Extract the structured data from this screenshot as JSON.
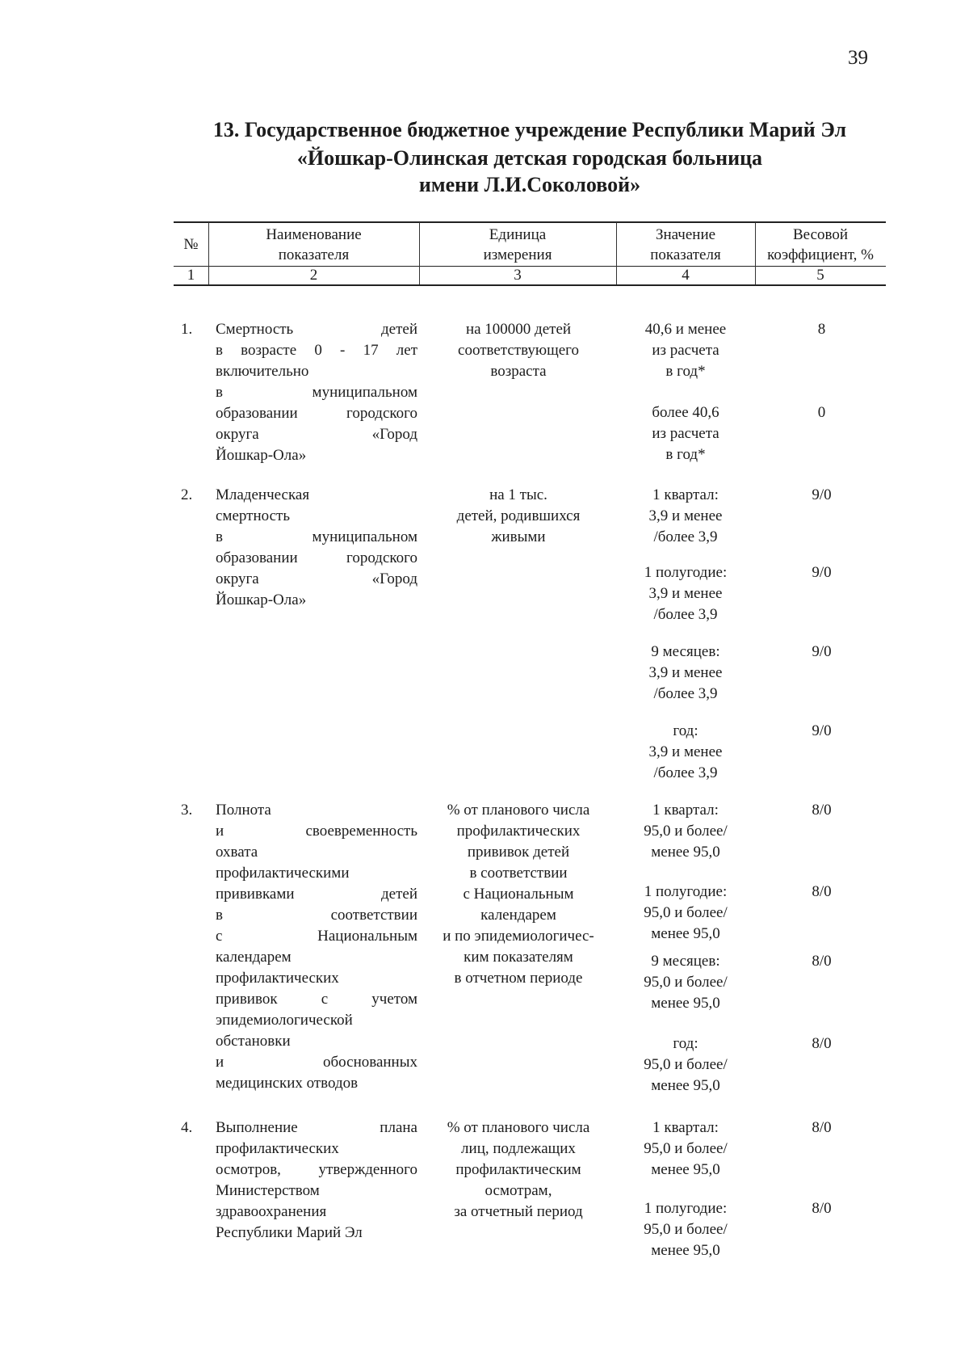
{
  "page_number": "39",
  "title": [
    "13. Государственное бюджетное учреждение Республики Марий Эл",
    "«Йошкар-Олинская детская городская больница",
    "имени Л.И.Соколовой»"
  ],
  "table": {
    "headers": [
      [
        "№"
      ],
      [
        "Наименование",
        "показателя"
      ],
      [
        "Единица",
        "измерения"
      ],
      [
        "Значение",
        "показателя"
      ],
      [
        "Весовой",
        "коэффициент, %"
      ]
    ],
    "column_numbers": [
      "1",
      "2",
      "3",
      "4",
      "5"
    ],
    "rows": [
      {
        "number": "1.",
        "name": [
          "Смертность детей",
          "в возрасте 0 - 17 лет",
          "включительно",
          "в муниципальном",
          "образовании городского",
          "округа «Город",
          "Йошкар-Ола»"
        ],
        "unit": [
          "на 100000 детей",
          "соответствующего",
          "возраста"
        ],
        "values": [
          {
            "lines": [
              "40,6 и менее",
              "из расчета",
              "в год*"
            ],
            "weight": "8"
          },
          {
            "lines": [
              "более 40,6",
              "из расчета",
              "в год*"
            ],
            "weight": "0"
          }
        ]
      },
      {
        "number": "2.",
        "name": [
          "Младенческая",
          "смертность",
          "в муниципальном",
          "образовании городского",
          "округа «Город",
          "Йошкар-Ола»"
        ],
        "unit": [
          "на 1 тыс.",
          "детей, родившихся",
          "живыми"
        ],
        "values": [
          {
            "lines": [
              "1 квартал:",
              "3,9 и менее",
              "/более 3,9"
            ],
            "weight": "9/0"
          },
          {
            "lines": [
              "1 полугодие:",
              "3,9 и менее",
              "/более 3,9"
            ],
            "weight": "9/0"
          },
          {
            "lines": [
              "9 месяцев:",
              "3,9 и менее",
              "/более 3,9"
            ],
            "weight": "9/0"
          },
          {
            "lines": [
              "год:",
              "3,9 и менее",
              "/более 3,9"
            ],
            "weight": "9/0"
          }
        ]
      },
      {
        "number": "3.",
        "name": [
          "Полнота",
          "и своевременность",
          "охвата",
          "профилактическими",
          "прививками детей",
          "в соответствии",
          "с Национальным",
          "календарем",
          "профилактических",
          "прививок с учетом",
          "эпидемиологической",
          "обстановки",
          "и обоснованных",
          "медицинских отводов"
        ],
        "unit": [
          "% от планового числа",
          "профилактических",
          "прививок детей",
          "в соответствии",
          "с Национальным",
          "календарем",
          "и по эпидемиологичес-",
          "ким показателям",
          "в отчетном периоде"
        ],
        "values": [
          {
            "lines": [
              "1 квартал:",
              "95,0 и более/",
              "менее 95,0"
            ],
            "weight": "8/0"
          },
          {
            "lines": [
              "1 полугодие:",
              "95,0 и более/",
              "менее 95,0"
            ],
            "weight": "8/0"
          },
          {
            "lines": [
              "9 месяцев:",
              "95,0 и более/",
              "менее 95,0"
            ],
            "weight": "8/0"
          },
          {
            "lines": [
              "год:",
              "95,0 и более/",
              "менее 95,0"
            ],
            "weight": "8/0"
          }
        ]
      },
      {
        "number": "4.",
        "name": [
          "Выполнение плана",
          "профилактических",
          "осмотров, утвержденного",
          "Министерством",
          "здравоохранения",
          "Республики Марий Эл"
        ],
        "unit": [
          "% от планового числа",
          "лиц, подлежащих",
          "профилактическим",
          "осмотрам,",
          "за отчетный период"
        ],
        "values": [
          {
            "lines": [
              "1 квартал:",
              "95,0 и более/",
              "менее 95,0"
            ],
            "weight": "8/0"
          },
          {
            "lines": [
              "1 полугодие:",
              "95,0 и более/",
              "менее 95,0"
            ],
            "weight": "8/0"
          }
        ]
      }
    ]
  }
}
